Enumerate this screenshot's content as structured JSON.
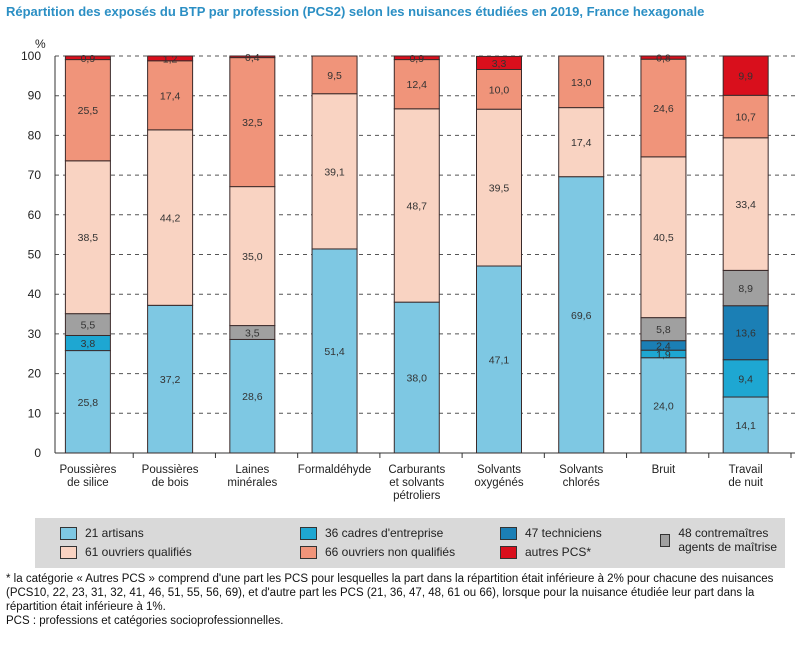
{
  "title": "Répartition des exposés du BTP par profession (PCS2) selon les nuisances étudiées en 2019, France hexagonale",
  "chart_data": {
    "type": "bar",
    "stacked": true,
    "ylabel": "%",
    "ylim": [
      0,
      100
    ],
    "yticks": [
      0,
      10,
      20,
      30,
      40,
      50,
      60,
      70,
      80,
      90,
      100
    ],
    "grid": true,
    "legend_position": "bottom",
    "categories": [
      [
        "Poussières",
        "de silice"
      ],
      [
        "Poussières",
        "de bois"
      ],
      [
        "Laines",
        "minérales"
      ],
      [
        "Formaldéhyde"
      ],
      [
        "Carburants",
        "et solvants",
        "pétroliers"
      ],
      [
        "Solvants",
        "oxygénés"
      ],
      [
        "Solvants",
        "chlorés"
      ],
      [
        "Bruit"
      ],
      [
        "Travail",
        "de nuit"
      ]
    ],
    "series": [
      {
        "name": "21 artisans",
        "color": "#7ec8e3",
        "values": [
          25.8,
          37.2,
          28.6,
          51.4,
          38.0,
          47.1,
          69.6,
          24.0,
          14.1
        ]
      },
      {
        "name": "36 cadres d'entreprise",
        "color": "#1ea7d2",
        "values": [
          3.8,
          0,
          0,
          0,
          0,
          0,
          0,
          1.9,
          9.4
        ]
      },
      {
        "name": "47 techniciens",
        "color": "#1b7fb5",
        "values": [
          0,
          0,
          0,
          0,
          0,
          0,
          0,
          2.4,
          13.6
        ]
      },
      {
        "name": "48 contremaîtres agents de maîtrise",
        "color": "#a0a0a0",
        "values": [
          5.5,
          0,
          3.5,
          0,
          0,
          0,
          0,
          5.8,
          8.9
        ]
      },
      {
        "name": "61 ouvriers  qualifiés",
        "color": "#f9d3c2",
        "values": [
          38.5,
          44.2,
          35.0,
          39.1,
          48.7,
          39.5,
          17.4,
          40.5,
          33.4
        ]
      },
      {
        "name": "66 ouvriers non qualifiés",
        "color": "#f0947a",
        "values": [
          25.5,
          17.4,
          32.5,
          9.5,
          12.4,
          10.0,
          13.0,
          24.6,
          10.7
        ]
      },
      {
        "name": "autres PCS*",
        "color": "#d90f1c",
        "values": [
          0.9,
          1.2,
          0.4,
          0,
          0.9,
          3.3,
          0,
          0.8,
          9.9
        ]
      }
    ]
  },
  "notes": [
    "* la catégorie « Autres PCS » comprend d'une part les PCS pour lesquelles la part dans la répartition était inférieure à 2% pour chacune des nuisances (PCS10, 22, 23, 31, 32, 41, 46, 51, 55, 56, 69), et d'autre part les PCS (21, 36, 47, 48, 61 ou 66), lorsque pour la nuisance étudiée leur part dans la répartition était inférieure à 1%.",
    "PCS : professions et catégories socioprofessionnelles."
  ]
}
